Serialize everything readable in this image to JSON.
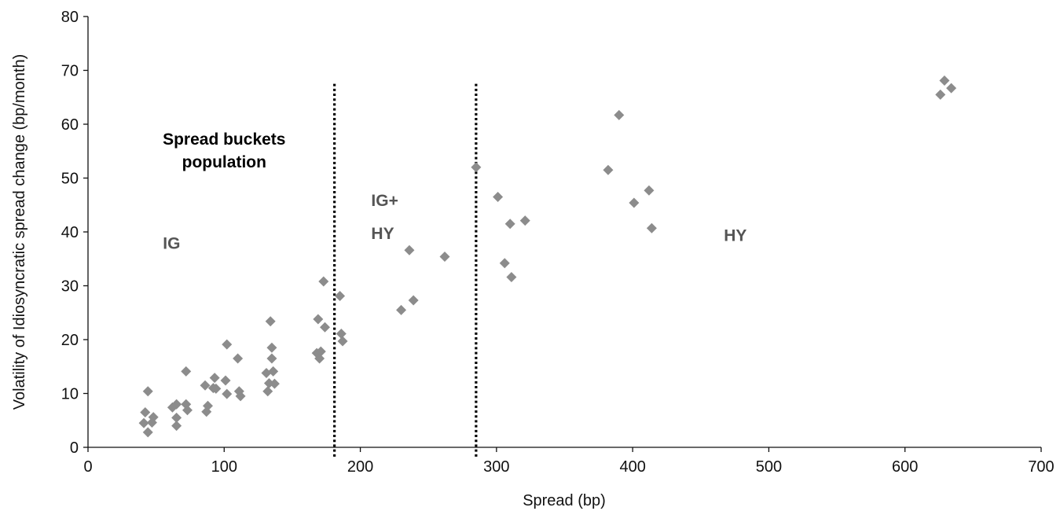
{
  "chart_data": {
    "type": "scatter",
    "title": "",
    "xlabel": "Spread (bp)",
    "ylabel": "Volatility of Idiosyncratic spread change (bp/month)",
    "xlim": [
      0,
      700
    ],
    "ylim": [
      0,
      80
    ],
    "xticks": [
      0,
      100,
      200,
      300,
      400,
      500,
      600,
      700
    ],
    "yticks": [
      0,
      10,
      20,
      30,
      40,
      50,
      60,
      70,
      80
    ],
    "grid": false,
    "marker": "diamond",
    "marker_color": "#8c8c8c",
    "annotation_color": "#555555",
    "annotation_title": [
      "Spread buckets",
      "population"
    ],
    "thresholds": [
      {
        "x": 181,
        "style": "dotted",
        "y_top": 67.5
      },
      {
        "x": 285,
        "style": "dotted",
        "y_top": 67.5
      }
    ],
    "bucket_labels": [
      {
        "lines": [
          "IG"
        ],
        "x": 55,
        "y": 38
      },
      {
        "lines": [
          "IG+",
          "HY"
        ],
        "x": 208,
        "y": 46
      },
      {
        "lines": [
          "HY"
        ],
        "x": 467,
        "y": 39.5
      }
    ],
    "points": [
      [
        41,
        4.5
      ],
      [
        42,
        6.5
      ],
      [
        44,
        2.8
      ],
      [
        44,
        10.4
      ],
      [
        47,
        4.6
      ],
      [
        48,
        5.6
      ],
      [
        62,
        7.4
      ],
      [
        65,
        8.0
      ],
      [
        65,
        5.5
      ],
      [
        65,
        4.0
      ],
      [
        72,
        14.1
      ],
      [
        72,
        8.0
      ],
      [
        73,
        6.9
      ],
      [
        86,
        11.5
      ],
      [
        87,
        6.6
      ],
      [
        88,
        7.7
      ],
      [
        92,
        11.0
      ],
      [
        93,
        12.9
      ],
      [
        94,
        10.9
      ],
      [
        101,
        12.4
      ],
      [
        102,
        19.1
      ],
      [
        102,
        9.9
      ],
      [
        110,
        16.5
      ],
      [
        111,
        10.4
      ],
      [
        112,
        9.5
      ],
      [
        131,
        13.8
      ],
      [
        132,
        10.4
      ],
      [
        133,
        11.9
      ],
      [
        134,
        23.4
      ],
      [
        135,
        18.5
      ],
      [
        135,
        16.5
      ],
      [
        136,
        14.1
      ],
      [
        137,
        11.8
      ],
      [
        168,
        17.5
      ],
      [
        169,
        23.8
      ],
      [
        170,
        16.5
      ],
      [
        171,
        17.8
      ],
      [
        173,
        30.8
      ],
      [
        174,
        22.3
      ],
      [
        185,
        28.1
      ],
      [
        186,
        21.1
      ],
      [
        187,
        19.7
      ],
      [
        230,
        25.5
      ],
      [
        236,
        36.6
      ],
      [
        239,
        27.3
      ],
      [
        262,
        35.4
      ],
      [
        285,
        52.0
      ],
      [
        301,
        46.5
      ],
      [
        306,
        34.2
      ],
      [
        310,
        41.5
      ],
      [
        311,
        31.6
      ],
      [
        321,
        42.1
      ],
      [
        382,
        51.5
      ],
      [
        390,
        61.7
      ],
      [
        401,
        45.4
      ],
      [
        412,
        47.7
      ],
      [
        414,
        40.7
      ],
      [
        626,
        65.5
      ],
      [
        629,
        68.1
      ],
      [
        634,
        66.7
      ]
    ]
  }
}
